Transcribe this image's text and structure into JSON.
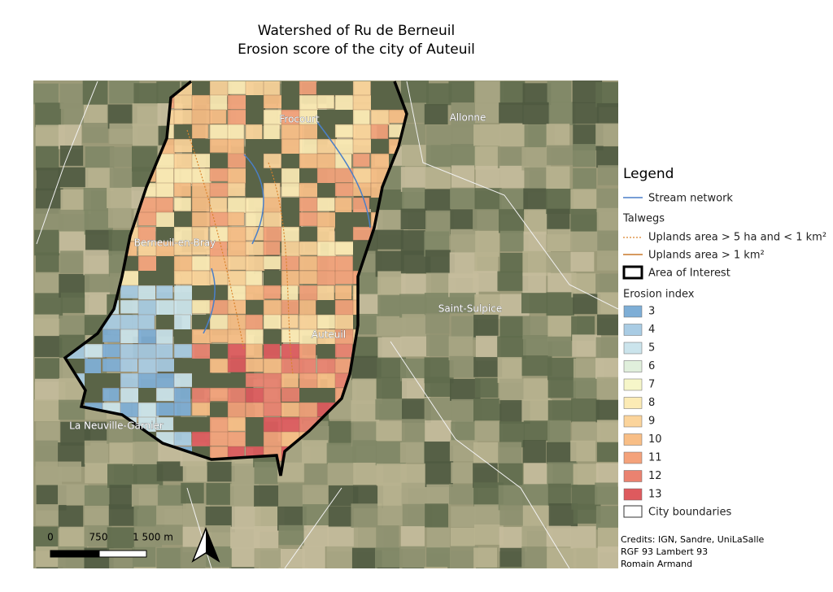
{
  "title": [
    "Watershed of Ru de Berneuil",
    "Erosion score of the city of Auteuil"
  ],
  "places": [
    "Frocourt",
    "Allonne",
    "Berneuil-en-Bray",
    "Saint-Sulpice",
    "Auteuil",
    "La Neuville-Garnier"
  ],
  "legend": {
    "title": "Legend",
    "stream": "Stream network",
    "talwegs": {
      "title": "Talwegs",
      "items": [
        "Uplands area > 5 ha and < 1 km²",
        "Uplands area > 1 km²"
      ]
    },
    "aoi": "Area of Interest",
    "erosion": {
      "title": "Erosion index",
      "items": [
        {
          "label": "3",
          "color": "#7eaed6"
        },
        {
          "label": "4",
          "color": "#a9cce4"
        },
        {
          "label": "5",
          "color": "#cbe4ec"
        },
        {
          "label": "6",
          "color": "#e0efdc"
        },
        {
          "label": "7",
          "color": "#f6f6c9"
        },
        {
          "label": "8",
          "color": "#fcebb5"
        },
        {
          "label": "9",
          "color": "#fbd49b"
        },
        {
          "label": "10",
          "color": "#f8be86"
        },
        {
          "label": "11",
          "color": "#f4a27b"
        },
        {
          "label": "12",
          "color": "#ea8270"
        },
        {
          "label": "13",
          "color": "#de5a5e"
        }
      ]
    },
    "boundaries": "City boundaries"
  },
  "scale": [
    "0",
    "750",
    "1 500 m"
  ],
  "credits": [
    "Credits: IGN, Sandre, UniLaSalle",
    "RGF 93 Lambert 93",
    "Romain Armand"
  ]
}
